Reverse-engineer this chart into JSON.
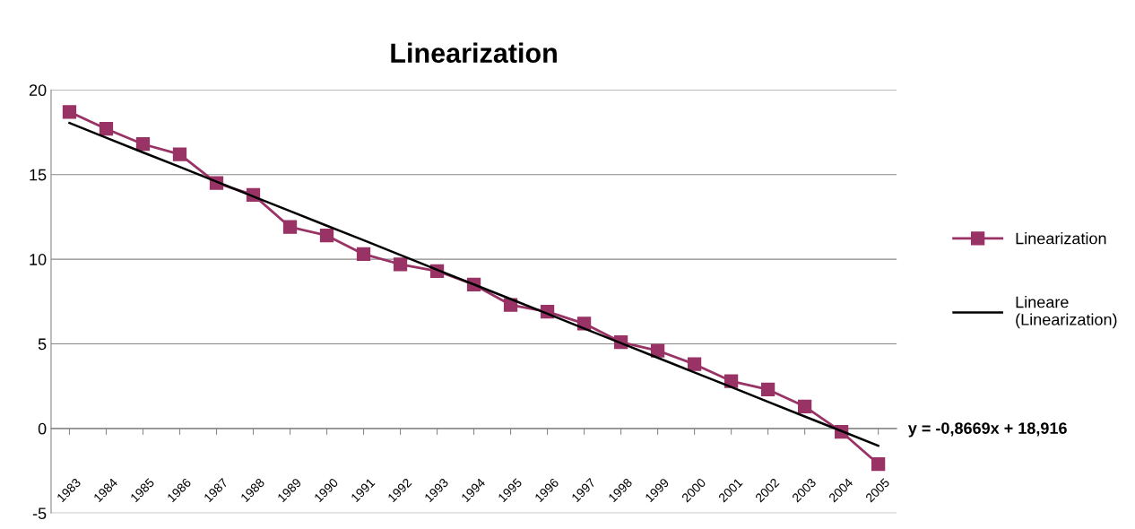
{
  "chart_data": {
    "type": "line",
    "title": "Linearization",
    "categories": [
      "1983",
      "1984",
      "1985",
      "1986",
      "1987",
      "1988",
      "1989",
      "1990",
      "1991",
      "1992",
      "1993",
      "1994",
      "1995",
      "1996",
      "1997",
      "1998",
      "1999",
      "2000",
      "2001",
      "2002",
      "2003",
      "2004",
      "2005"
    ],
    "series": [
      {
        "name": "Linearization",
        "color": "#993366",
        "marker": "square",
        "values": [
          18.7,
          17.7,
          16.8,
          16.2,
          14.5,
          13.8,
          11.9,
          11.4,
          10.3,
          9.7,
          9.3,
          8.5,
          7.3,
          6.9,
          6.2,
          5.1,
          4.6,
          3.8,
          2.8,
          2.3,
          1.3,
          -0.2,
          -2.1
        ]
      },
      {
        "name": "Lineare (Linearization)",
        "color": "#000000",
        "marker": "none",
        "values": [
          18.05,
          17.18,
          16.31,
          15.45,
          14.58,
          13.71,
          12.85,
          11.98,
          11.12,
          10.25,
          9.38,
          8.51,
          7.65,
          6.78,
          5.91,
          5.05,
          4.18,
          3.31,
          2.45,
          1.58,
          0.71,
          -0.15,
          -1.02
        ]
      }
    ],
    "ylim": [
      -5,
      20
    ],
    "yticks": [
      -5,
      0,
      5,
      10,
      15,
      20
    ],
    "grid": "y",
    "legend": "right",
    "annotations": [
      "y = -0,8669x + 18,916"
    ]
  }
}
